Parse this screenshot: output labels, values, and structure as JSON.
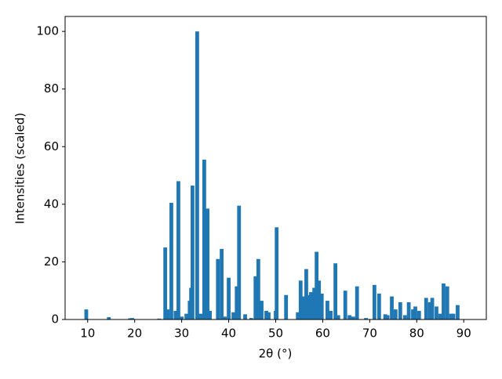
{
  "chart_data": {
    "type": "bar",
    "x_label": "2θ (°)",
    "y_label": "Intensities (scaled)",
    "color": "#1f77b4",
    "bar_width": 0.8,
    "x": [
      9.7,
      14.5,
      19,
      19.5,
      25.2,
      26.5,
      27,
      27.8,
      28.7,
      29.3,
      30,
      31,
      31.7,
      32,
      32.3,
      33.3,
      34,
      34.8,
      35.5,
      36,
      37.7,
      38.5,
      39.2,
      40,
      41,
      41.7,
      42.2,
      43.5,
      44.8,
      45.7,
      46.3,
      47,
      48,
      48.5,
      50,
      50.2,
      52.2,
      54.7,
      55.3,
      55.8,
      56.5,
      57,
      57.5,
      58.2,
      58.7,
      59.2,
      59.8,
      61,
      61.7,
      62.7,
      63.3,
      64.8,
      65.7,
      66.5,
      67.3,
      69.2,
      71,
      72,
      73.3,
      73.8,
      74.7,
      75.5,
      76.5,
      77.5,
      78.3,
      79.2,
      79.7,
      80.5,
      82,
      82.8,
      83.3,
      84.2,
      85,
      85.7,
      86.5,
      87.3,
      87.8,
      88.7
    ],
    "values": [
      3.5,
      0.8,
      0.4,
      0.5,
      0.3,
      25,
      3.5,
      40.5,
      3,
      48,
      1,
      2,
      6.5,
      11,
      46.5,
      100,
      2,
      55.5,
      38.5,
      3,
      21,
      24.5,
      1,
      14.5,
      2.5,
      11.5,
      39.5,
      1.8,
      0.5,
      15,
      21,
      6.5,
      3,
      2.5,
      3,
      32,
      8.5,
      2.5,
      13.5,
      8,
      17.5,
      8.5,
      9.5,
      11,
      23.5,
      13.5,
      9,
      6.5,
      3,
      19.5,
      1.5,
      10,
      1.5,
      1,
      11.5,
      0.5,
      12,
      9,
      1.8,
      1.5,
      8,
      3.5,
      6,
      1.5,
      6,
      3.5,
      4.5,
      3,
      7.5,
      6,
      7.5,
      4.5,
      2,
      12.5,
      11.5,
      2,
      2,
      5
    ],
    "xlim": [
      5.2,
      94.8
    ],
    "ylim": [
      0,
      105.2
    ],
    "xticks": [
      10,
      20,
      30,
      40,
      50,
      60,
      70,
      80,
      90
    ],
    "yticks": [
      0,
      20,
      40,
      60,
      80,
      100
    ]
  }
}
